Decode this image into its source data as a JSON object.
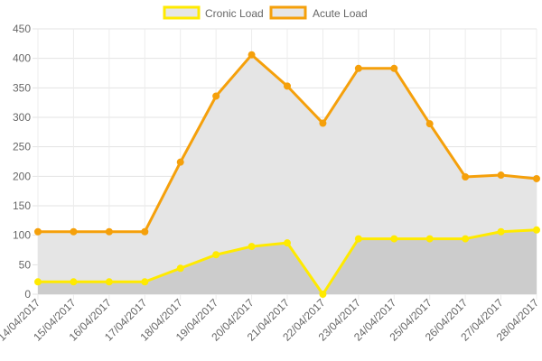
{
  "chart_data": {
    "type": "area",
    "title": "",
    "xlabel": "",
    "ylabel": "",
    "grid": true,
    "legend_position": "top-center",
    "ylim": [
      0,
      450
    ],
    "y_ticks": [
      0,
      50,
      100,
      150,
      200,
      250,
      300,
      350,
      400,
      450
    ],
    "categories": [
      "14/04/2017",
      "15/04/2017",
      "16/04/2017",
      "17/04/2017",
      "18/04/2017",
      "19/04/2017",
      "20/04/2017",
      "21/04/2017",
      "22/04/2017",
      "23/04/2017",
      "24/04/2017",
      "25/04/2017",
      "26/04/2017",
      "27/04/2017",
      "28/04/2017"
    ],
    "series": [
      {
        "name": "Cronic Load",
        "line_color": "#ffea00",
        "fill_color": "#cccccc",
        "legend_fill": "#e6e6e6",
        "values": [
          21,
          21,
          21,
          21,
          44,
          67,
          81,
          87,
          0,
          94,
          94,
          94,
          94,
          106,
          109
        ]
      },
      {
        "name": "Acute Load",
        "line_color": "#f5a00b",
        "fill_color": "#e5e5e5",
        "legend_fill": "#e6e6e6",
        "values": [
          106,
          106,
          106,
          106,
          224,
          336,
          406,
          353,
          290,
          383,
          383,
          289,
          199,
          202,
          196
        ]
      }
    ]
  }
}
